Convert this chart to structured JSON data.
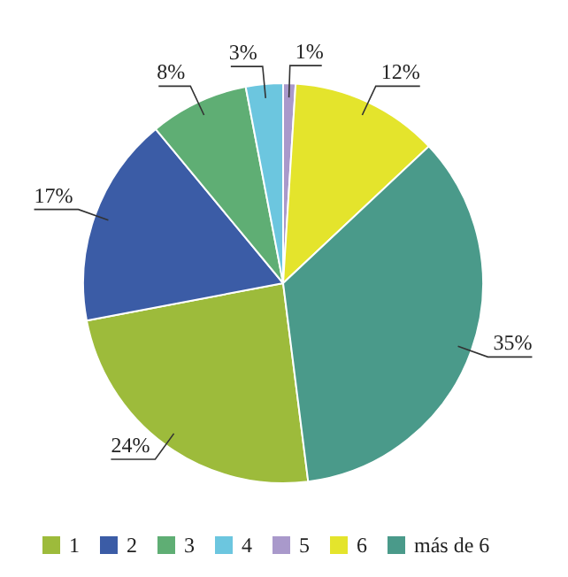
{
  "chart_data": {
    "type": "pie",
    "categories": [
      "1",
      "2",
      "3",
      "4",
      "5",
      "6",
      "más de 6"
    ],
    "values": [
      24,
      17,
      8,
      3,
      1,
      12,
      35
    ],
    "colors": [
      "#9dbb3b",
      "#3b5ca6",
      "#5fae74",
      "#6cc6df",
      "#a999cb",
      "#e4e42c",
      "#4a9a8a"
    ],
    "value_labels": [
      "24%",
      "17%",
      "8%",
      "3%",
      "1%",
      "12%",
      "35%"
    ],
    "legend": "bottom"
  }
}
